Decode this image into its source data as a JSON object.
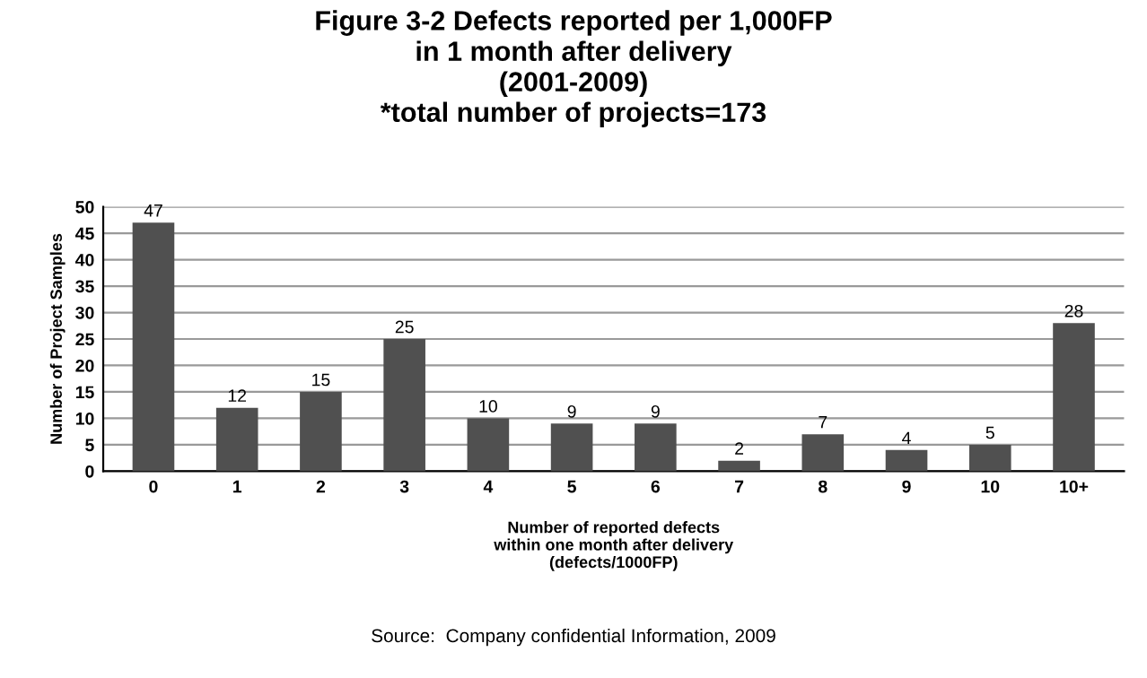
{
  "chart_data": {
    "type": "bar",
    "title": "Figure 3-2 Defects reported per 1,000FP\nin 1 month after delivery\n(2001-2009)\n*total number of projects=173",
    "xlabel": "Number of reported defects\nwithin one month after delivery\n(defects/1000FP)",
    "ylabel": "Number of Project Samples",
    "categories": [
      "0",
      "1",
      "2",
      "3",
      "4",
      "5",
      "6",
      "7",
      "8",
      "9",
      "10",
      "10+"
    ],
    "values": [
      47,
      12,
      15,
      25,
      10,
      9,
      9,
      2,
      7,
      4,
      5,
      28
    ],
    "color": "#505050",
    "ylim": [
      0,
      50
    ],
    "yticks": [
      0,
      5,
      10,
      15,
      20,
      25,
      30,
      35,
      40,
      45,
      50
    ],
    "grid": "y",
    "data_labels": true,
    "legend": false,
    "annotations": [
      "Source:  Company confidential Information, 2009"
    ]
  }
}
